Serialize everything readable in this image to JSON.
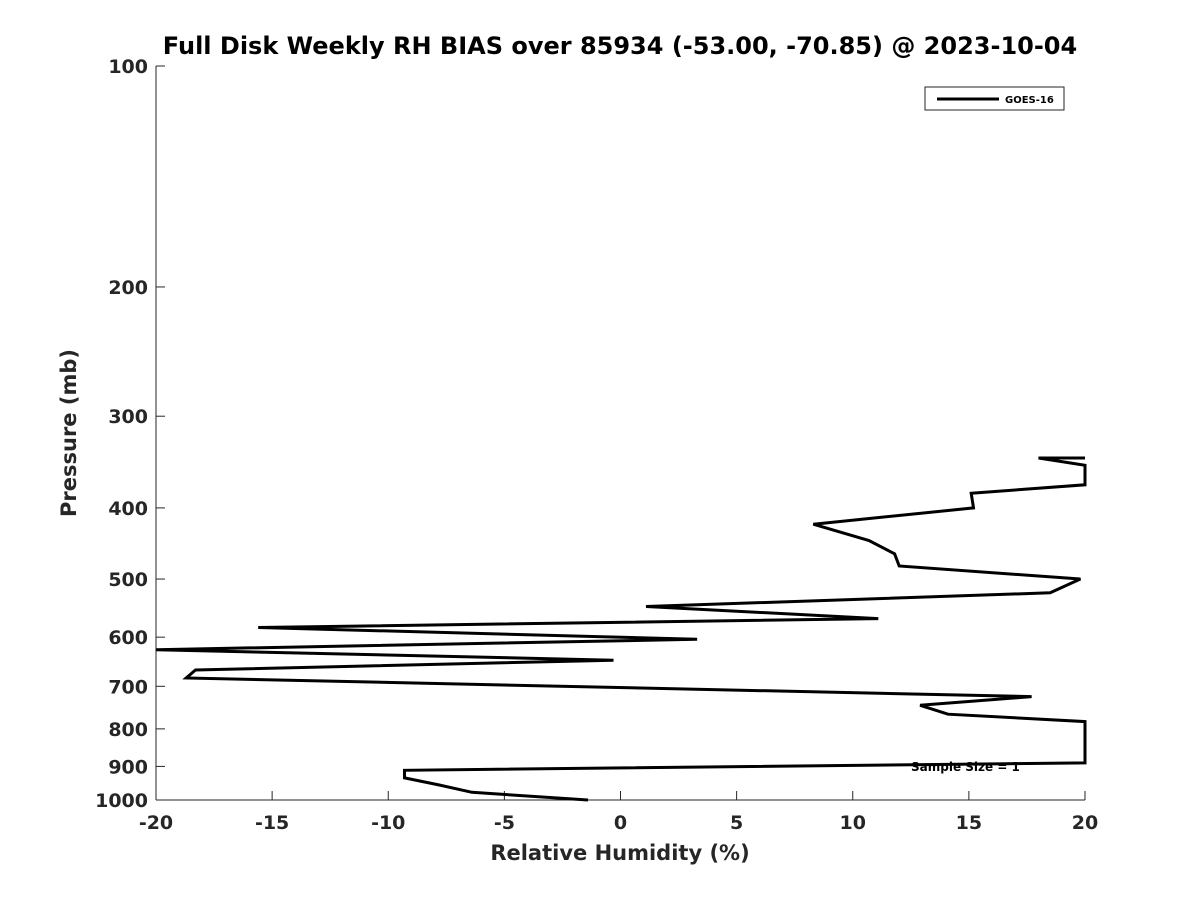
{
  "chart_data": {
    "type": "line",
    "title": "Full Disk Weekly RH BIAS over 85934 (-53.00, -70.85) @ 2023-10-04",
    "xlabel": "Relative Humidity (%)",
    "ylabel": "Pressure (mb)",
    "xlim": [
      -20,
      20
    ],
    "ylim": [
      100,
      1000
    ],
    "y_scale": "log",
    "y_reversed": true,
    "grid": false,
    "x_ticks": [
      -20,
      -15,
      -10,
      -5,
      0,
      5,
      10,
      15,
      20
    ],
    "x_tick_labels": [
      "-20",
      "-15",
      "-10",
      "-5",
      "0",
      "5",
      "10",
      "15",
      "20"
    ],
    "y_ticks": [
      100,
      200,
      300,
      400,
      500,
      600,
      700,
      800,
      900,
      1000
    ],
    "y_tick_labels": [
      "100",
      "200",
      "300",
      "400",
      "500",
      "600",
      "700",
      "800",
      "900",
      "1000"
    ],
    "legend_position": "top-right",
    "annotation": "Sample Size = 1",
    "series": [
      {
        "name": "GOES-16",
        "color": "#000000",
        "points": [
          {
            "x": 20.0,
            "y": 342
          },
          {
            "x": 18.0,
            "y": 342
          },
          {
            "x": 20.0,
            "y": 350
          },
          {
            "x": 20.0,
            "y": 372
          },
          {
            "x": 15.1,
            "y": 382
          },
          {
            "x": 15.2,
            "y": 400
          },
          {
            "x": 8.3,
            "y": 421
          },
          {
            "x": 10.7,
            "y": 443
          },
          {
            "x": 11.8,
            "y": 462
          },
          {
            "x": 12.0,
            "y": 480
          },
          {
            "x": 19.8,
            "y": 500
          },
          {
            "x": 18.5,
            "y": 522
          },
          {
            "x": 1.1,
            "y": 545
          },
          {
            "x": 11.1,
            "y": 566
          },
          {
            "x": -15.6,
            "y": 582
          },
          {
            "x": 3.3,
            "y": 604
          },
          {
            "x": -20.0,
            "y": 624
          },
          {
            "x": -0.3,
            "y": 645
          },
          {
            "x": -18.3,
            "y": 665
          },
          {
            "x": -18.7,
            "y": 682
          },
          {
            "x": 17.7,
            "y": 723
          },
          {
            "x": 12.9,
            "y": 743
          },
          {
            "x": 14.1,
            "y": 764
          },
          {
            "x": 20.0,
            "y": 782
          },
          {
            "x": 20.0,
            "y": 890
          },
          {
            "x": -9.3,
            "y": 911
          },
          {
            "x": -9.3,
            "y": 933
          },
          {
            "x": -7.8,
            "y": 954
          },
          {
            "x": -6.4,
            "y": 976
          },
          {
            "x": -1.4,
            "y": 1000
          }
        ]
      }
    ]
  }
}
